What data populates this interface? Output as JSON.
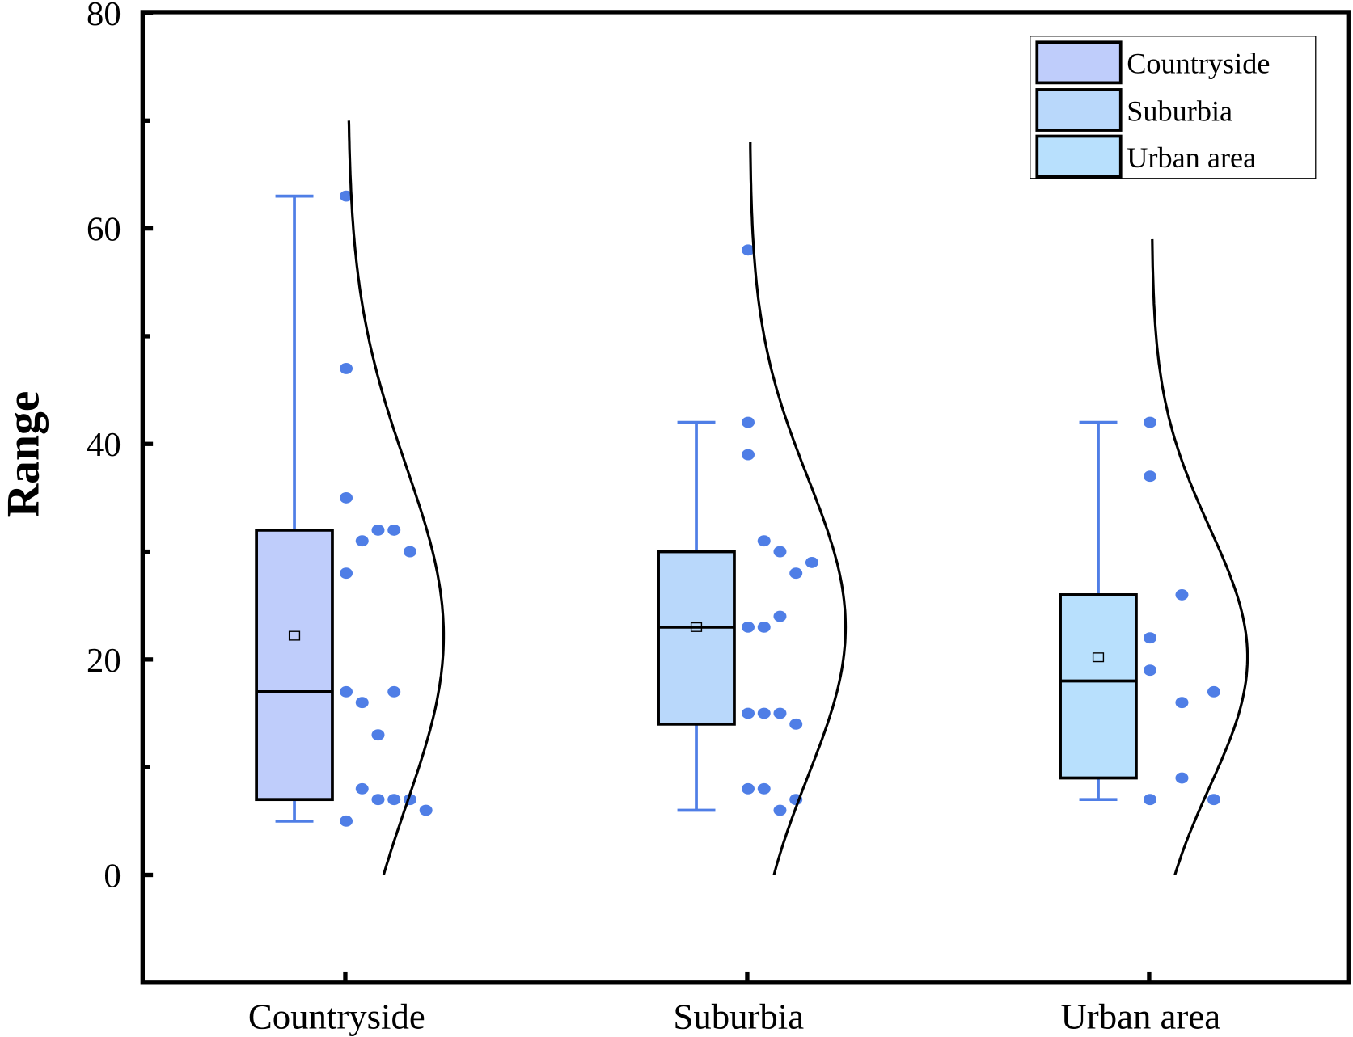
{
  "chart_data": {
    "type": "box",
    "title": "",
    "xlabel": "",
    "ylabel": "Range",
    "ylim": [
      -10,
      80
    ],
    "yticks": [
      0,
      20,
      40,
      60,
      80
    ],
    "yminor_ticks": [
      10,
      30,
      50,
      70
    ],
    "grid": false,
    "legend_position": "top-right",
    "colors": {
      "points": "#4f7ee6",
      "whisker": "#4f7ee6",
      "curve": "#000000"
    },
    "categories": [
      "Countryside",
      "Suburbia",
      "Urban area"
    ],
    "series": [
      {
        "name": "Countryside",
        "fill": "#bfcdfb",
        "whisker_low": 5,
        "q1": 7,
        "median": 17,
        "q3": 32,
        "whisker_high": 63,
        "mean": 22.2,
        "points": [
          63,
          47,
          35,
          31,
          32,
          32,
          30,
          28,
          17,
          16,
          17,
          13,
          8,
          7,
          7,
          7,
          6,
          5
        ],
        "curve": {
          "mu": 22.2,
          "sigma": 15.8,
          "ymax": 70
        }
      },
      {
        "name": "Suburbia",
        "fill": "#b9d8fb",
        "whisker_low": 6,
        "q1": 14,
        "median": 23,
        "q3": 30,
        "whisker_high": 42,
        "mean": 23,
        "points": [
          58,
          42,
          39,
          31,
          30,
          28,
          29,
          23,
          23,
          24,
          15,
          15,
          15,
          14,
          8,
          8,
          6,
          7
        ],
        "curve": {
          "mu": 23,
          "sigma": 13.85,
          "ymax": 68
        }
      },
      {
        "name": "Urban area",
        "fill": "#b8e0fd",
        "whisker_low": 7,
        "q1": 9,
        "median": 18,
        "q3": 26,
        "whisker_high": 42,
        "mean": 20.2,
        "points": [
          42,
          37,
          26,
          22,
          19,
          16,
          17,
          9,
          7,
          7
        ],
        "curve": {
          "mu": 20.2,
          "sigma": 12.0,
          "ymax": 59
        }
      }
    ]
  }
}
